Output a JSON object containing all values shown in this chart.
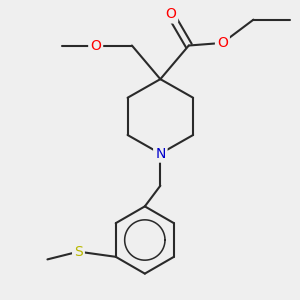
{
  "bg_color": "#efefef",
  "bond_color": "#2a2a2a",
  "bond_width": 1.5,
  "atom_colors": {
    "O": "#ff0000",
    "N": "#0000cc",
    "S": "#b8b800",
    "C": "#2a2a2a"
  },
  "font_size": 10,
  "xlim": [
    -2.6,
    3.2
  ],
  "ylim": [
    -3.5,
    2.2
  ]
}
